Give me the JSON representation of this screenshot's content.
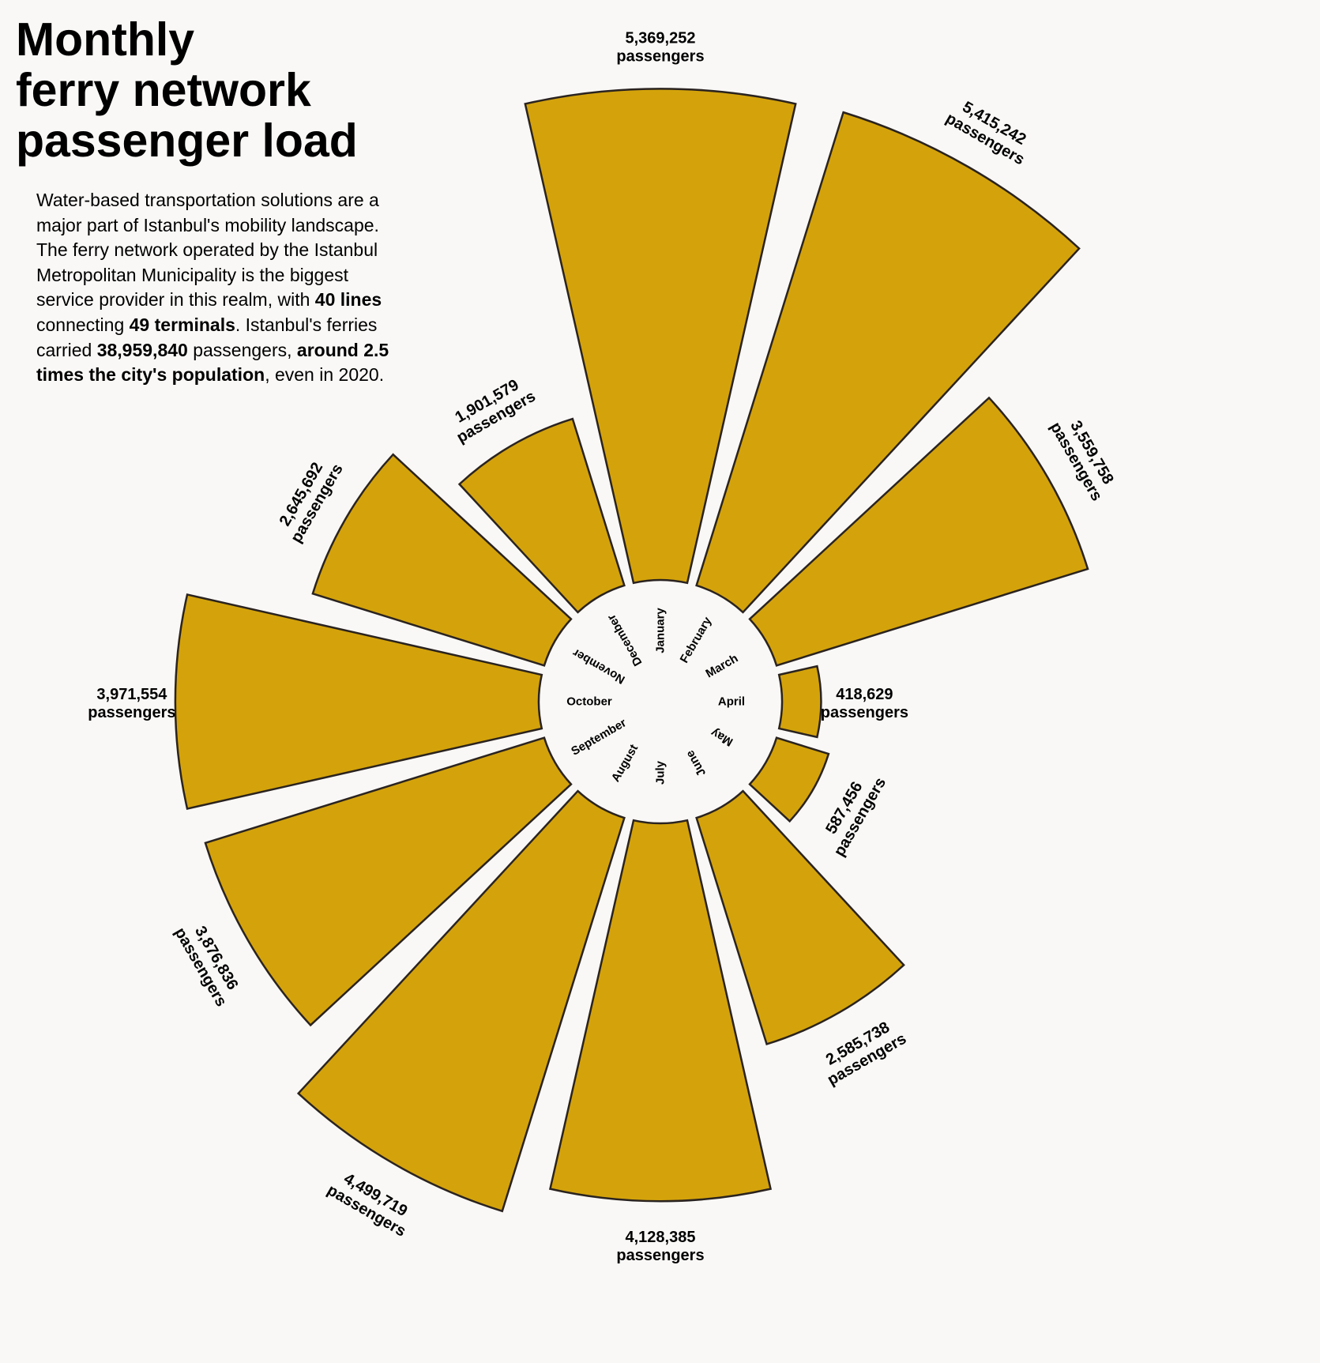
{
  "title_lines": [
    "Monthly",
    "ferry network",
    "passenger load"
  ],
  "intro": [
    {
      "text": "Water-based transportation solutions are a major part of Istanbul's mobility landscape. The ferry network operated by the Istanbul Metropolitan Municipality is the biggest service provider in this realm, with ",
      "bold": false
    },
    {
      "text": "40 lines",
      "bold": true
    },
    {
      "text": " connecting ",
      "bold": false
    },
    {
      "text": "49 terminals",
      "bold": true
    },
    {
      "text": ". Istanbul's ferries carried ",
      "bold": false
    },
    {
      "text": "38,959,840",
      "bold": true
    },
    {
      "text": " passengers, ",
      "bold": false
    },
    {
      "text": "around 2.5 times the city's population",
      "bold": true
    },
    {
      "text": ", even in 2020.",
      "bold": false
    }
  ],
  "colors": {
    "bar_fill": "#d4a30b",
    "bar_stroke": "#2a2320",
    "background": "#f9f8f6",
    "text": "#000000"
  },
  "chart_data": {
    "type": "bar",
    "subtype": "radial",
    "categories": [
      "January",
      "February",
      "March",
      "April",
      "May",
      "June",
      "July",
      "August",
      "September",
      "October",
      "November",
      "December"
    ],
    "values": [
      5369252,
      5415242,
      3559758,
      418629,
      587456,
      2585738,
      4128385,
      4499719,
      3876836,
      3971554,
      2645692,
      1901579
    ],
    "value_labels": [
      "5,369,252",
      "5,415,242",
      "3,559,758",
      "418,629",
      "587,456",
      "2,585,738",
      "4,128,385",
      "4,499,719",
      "3,876,836",
      "3,971,554",
      "2,645,692",
      "1,901,579"
    ],
    "unit_label": "passengers",
    "direction": "clockwise",
    "start": "top"
  }
}
